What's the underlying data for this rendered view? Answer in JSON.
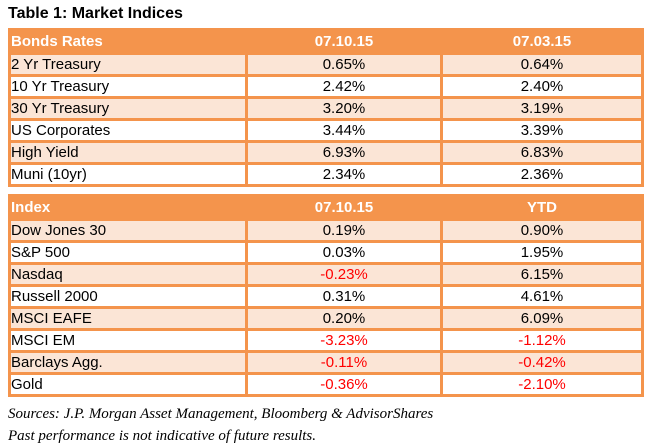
{
  "title": "Table 1: Market Indices",
  "colors": {
    "header_bg": "#F4944C",
    "border": "#F4944C",
    "band_row_bg": "#FBE5D6",
    "plain_row_bg": "#FFFFFF",
    "header_text": "#FFFFFF",
    "negative_text": "#FF0000",
    "body_text": "#000000"
  },
  "bonds_table": {
    "headers": [
      "Bonds Rates",
      "07.10.15",
      "07.03.15"
    ],
    "rows": [
      {
        "label": "2 Yr Treasury",
        "values": [
          "0.65%",
          "0.64%"
        ],
        "negative": [
          false,
          false
        ]
      },
      {
        "label": "10 Yr Treasury",
        "values": [
          "2.42%",
          "2.40%"
        ],
        "negative": [
          false,
          false
        ]
      },
      {
        "label": "30 Yr Treasury",
        "values": [
          "3.20%",
          "3.19%"
        ],
        "negative": [
          false,
          false
        ]
      },
      {
        "label": "US Corporates",
        "values": [
          "3.44%",
          "3.39%"
        ],
        "negative": [
          false,
          false
        ]
      },
      {
        "label": "High Yield",
        "values": [
          "6.93%",
          "6.83%"
        ],
        "negative": [
          false,
          false
        ]
      },
      {
        "label": "Muni (10yr)",
        "values": [
          "2.34%",
          "2.36%"
        ],
        "negative": [
          false,
          false
        ]
      }
    ]
  },
  "index_table": {
    "headers": [
      "Index",
      "07.10.15",
      "YTD"
    ],
    "rows": [
      {
        "label": "Dow Jones 30",
        "values": [
          "0.19%",
          "0.90%"
        ],
        "negative": [
          false,
          false
        ]
      },
      {
        "label": "S&P 500",
        "values": [
          "0.03%",
          "1.95%"
        ],
        "negative": [
          false,
          false
        ]
      },
      {
        "label": "Nasdaq",
        "values": [
          "-0.23%",
          "6.15%"
        ],
        "negative": [
          true,
          false
        ]
      },
      {
        "label": "Russell 2000",
        "values": [
          "0.31%",
          "4.61%"
        ],
        "negative": [
          false,
          false
        ]
      },
      {
        "label": "MSCI EAFE",
        "values": [
          "0.20%",
          "6.09%"
        ],
        "negative": [
          false,
          false
        ]
      },
      {
        "label": "MSCI EM",
        "values": [
          "-3.23%",
          "-1.12%"
        ],
        "negative": [
          true,
          true
        ]
      },
      {
        "label": "Barclays Agg.",
        "values": [
          "-0.11%",
          "-0.42%"
        ],
        "negative": [
          true,
          true
        ]
      },
      {
        "label": "Gold",
        "values": [
          "-0.36%",
          "-2.10%"
        ],
        "negative": [
          true,
          true
        ]
      }
    ]
  },
  "footer": {
    "line1": "Sources: J.P. Morgan Asset Management, Bloomberg & AdvisorShares",
    "line2": "Past performance is not indicative of future results."
  }
}
